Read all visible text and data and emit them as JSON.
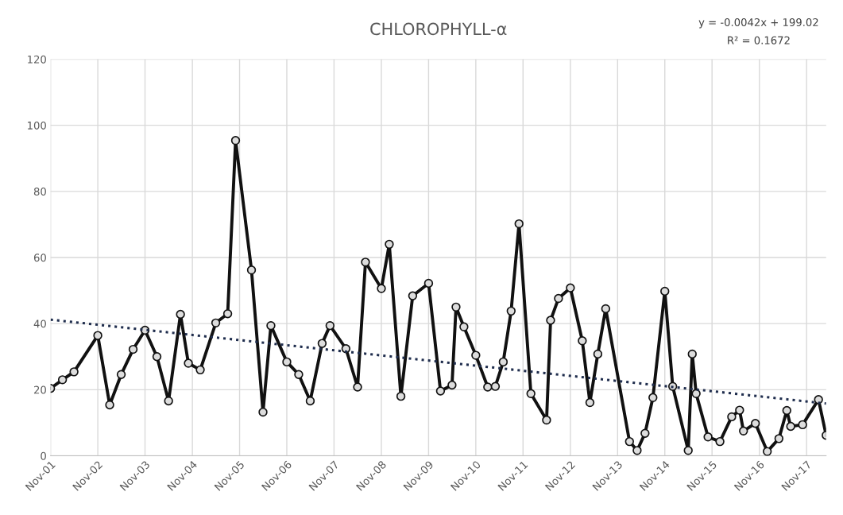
{
  "chart_data": {
    "type": "line",
    "title": "CHLOROPHYLL-α",
    "annotations": [
      "y = -0.0042x + 199.02",
      "R² = 0.1672"
    ],
    "x": [
      "2001-11",
      "2002-02",
      "2002-05",
      "2002-11",
      "2003-02",
      "2003-05",
      "2003-08",
      "2003-11",
      "2004-02",
      "2004-05",
      "2004-08",
      "2004-10",
      "2005-01",
      "2005-05",
      "2005-08",
      "2005-10",
      "2006-02",
      "2006-05",
      "2006-07",
      "2006-11",
      "2007-02",
      "2007-05",
      "2007-08",
      "2007-10",
      "2008-02",
      "2008-05",
      "2008-07",
      "2008-11",
      "2009-01",
      "2009-04",
      "2009-07",
      "2009-11",
      "2010-02",
      "2010-05",
      "2010-06",
      "2010-08",
      "2010-11",
      "2011-02",
      "2011-04",
      "2011-06",
      "2011-08",
      "2011-10",
      "2012-01",
      "2012-05",
      "2012-06",
      "2012-08",
      "2012-11",
      "2013-02",
      "2013-04",
      "2013-06",
      "2013-08",
      "2014-02",
      "2014-04",
      "2014-06",
      "2014-08",
      "2014-11",
      "2015-01",
      "2015-05",
      "2015-06",
      "2015-07",
      "2015-10",
      "2016-01",
      "2016-04",
      "2016-06",
      "2016-07",
      "2016-10",
      "2017-01",
      "2017-04",
      "2017-06",
      "2017-07",
      "2017-10",
      "2018-02",
      "2018-04"
    ],
    "series": [
      {
        "color": "#111111",
        "marker": "circle",
        "line_style": "solid",
        "values": [
          20.4,
          23.0,
          25.4,
          36.4,
          15.4,
          24.6,
          32.2,
          38.0,
          30.0,
          16.6,
          42.8,
          28.0,
          26.0,
          40.2,
          43.0,
          95.4,
          56.2,
          13.2,
          39.4,
          28.4,
          24.6,
          16.6,
          34.0,
          39.4,
          32.4,
          20.8,
          58.6,
          50.6,
          64.0,
          18.0,
          48.4,
          52.2,
          19.6,
          21.4,
          45.0,
          39.0,
          30.4,
          20.8,
          21.0,
          28.4,
          43.8,
          70.2,
          18.8,
          10.8,
          41.0,
          47.6,
          50.8,
          34.8,
          16.1,
          30.8,
          44.5,
          4.3,
          1.6,
          6.8,
          17.6,
          49.8,
          21.0,
          1.6,
          30.8,
          18.8,
          5.7,
          4.3,
          11.8,
          13.8,
          7.5,
          9.8,
          1.3,
          5.2,
          13.7,
          8.9,
          9.4,
          17.0,
          6.2
        ]
      },
      {
        "type": "line",
        "color": "#1f2d4d",
        "marker": "none",
        "line_style": "dotted",
        "x": [
          "2001-11",
          "2018-04"
        ],
        "values": [
          41.2,
          15.8
        ]
      }
    ],
    "xlim": [
      "2001-11",
      "2018-04"
    ],
    "xticks": [
      {
        "value": "2001-11",
        "label": "Nov-01"
      },
      {
        "value": "2002-11",
        "label": "Nov-02"
      },
      {
        "value": "2003-11",
        "label": "Nov-03"
      },
      {
        "value": "2004-11",
        "label": "Nov-04"
      },
      {
        "value": "2005-11",
        "label": "Nov-05"
      },
      {
        "value": "2006-11",
        "label": "Nov-06"
      },
      {
        "value": "2007-11",
        "label": "Nov-07"
      },
      {
        "value": "2008-11",
        "label": "Nov-08"
      },
      {
        "value": "2009-11",
        "label": "Nov-09"
      },
      {
        "value": "2010-11",
        "label": "Nov-10"
      },
      {
        "value": "2011-11",
        "label": "Nov-11"
      },
      {
        "value": "2012-11",
        "label": "Nov-12"
      },
      {
        "value": "2013-11",
        "label": "Nov-13"
      },
      {
        "value": "2014-11",
        "label": "Nov-14"
      },
      {
        "value": "2015-11",
        "label": "Nov-15"
      },
      {
        "value": "2016-11",
        "label": "Nov-16"
      },
      {
        "value": "2017-11",
        "label": "Nov-17"
      }
    ],
    "ylim": [
      0,
      120
    ],
    "yticks": [
      0,
      20,
      40,
      60,
      80,
      100,
      120
    ],
    "grid": true,
    "legend": false
  }
}
